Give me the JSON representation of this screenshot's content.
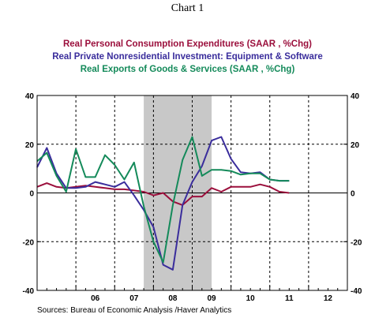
{
  "title": "Chart 1",
  "source": "Sources:  Bureau of Economic Analysis /Haver Analytics",
  "chart_data": {
    "type": "line",
    "x_unit": "year (decimal)",
    "xlim": [
      2005.0,
      2013.0
    ],
    "ylim": [
      -40,
      40
    ],
    "y_ticks": [
      40,
      20,
      0,
      -20,
      -40
    ],
    "y_tick_labels": [
      "40",
      "20",
      "0",
      "-20",
      "-40"
    ],
    "x_tick_labels": [
      {
        "label": "06",
        "x": 2006.5
      },
      {
        "label": "07",
        "x": 2007.5
      },
      {
        "label": "08",
        "x": 2008.5
      },
      {
        "label": "09",
        "x": 2009.5
      },
      {
        "label": "10",
        "x": 2010.5
      },
      {
        "label": "11",
        "x": 2011.5
      },
      {
        "label": "12",
        "x": 2012.5
      }
    ],
    "recession_shading": {
      "start": 2007.75,
      "end": 2009.5
    },
    "grid": {
      "vertical_dashed_at": [
        2006,
        2007,
        2008,
        2009,
        2010,
        2011,
        2012
      ],
      "horizontal_dashed_at": [
        20,
        -20
      ]
    },
    "series": [
      {
        "name": "Real Personal Consumption Expenditures (SAAR , %Chg)",
        "color": "#9b0f3c",
        "x": [
          2005.0,
          2005.25,
          2005.5,
          2005.75,
          2006.0,
          2006.25,
          2006.5,
          2006.75,
          2007.0,
          2007.25,
          2007.5,
          2007.75,
          2008.0,
          2008.25,
          2008.5,
          2008.75,
          2009.0,
          2009.25,
          2009.5,
          2009.75,
          2010.0,
          2010.25,
          2010.5,
          2010.75,
          2011.0,
          2011.25,
          2011.5
        ],
        "y": [
          2.5,
          4.0,
          2.5,
          2.0,
          2.5,
          3.0,
          2.5,
          2.0,
          1.5,
          1.5,
          1.0,
          0.5,
          -1.0,
          0.0,
          -3.5,
          -5.0,
          -1.5,
          -1.5,
          2.0,
          0.5,
          2.5,
          2.5,
          2.5,
          3.5,
          2.5,
          0.5,
          0.0
        ]
      },
      {
        "name": "Real Private Nonresidential Investment: Equipment & Software",
        "color": "#3a2d9c",
        "x": [
          2005.0,
          2005.25,
          2005.5,
          2005.75,
          2006.0,
          2006.25,
          2006.5,
          2006.75,
          2007.0,
          2007.25,
          2007.5,
          2007.75,
          2008.0,
          2008.25,
          2008.5,
          2008.75,
          2009.0,
          2009.25,
          2009.5,
          2009.75,
          2010.0,
          2010.25,
          2010.5,
          2010.75,
          2011.0,
          2011.25,
          2011.5
        ],
        "y": [
          10.5,
          18.5,
          8.0,
          2.0,
          2.0,
          2.5,
          4.5,
          3.5,
          2.5,
          4.5,
          -1.0,
          -7.0,
          -14.0,
          -29.5,
          -31.5,
          -5.0,
          4.5,
          11.0,
          21.5,
          23.0,
          14.0,
          8.5,
          8.0,
          8.5,
          5.5,
          5.0,
          5.0
        ]
      },
      {
        "name": "Real Exports of Goods & Services (SAAR , %Chg)",
        "color": "#148a5a",
        "x": [
          2005.0,
          2005.25,
          2005.5,
          2005.75,
          2006.0,
          2006.25,
          2006.5,
          2006.75,
          2007.0,
          2007.25,
          2007.5,
          2007.75,
          2008.0,
          2008.25,
          2008.5,
          2008.75,
          2009.0,
          2009.25,
          2009.5,
          2009.75,
          2010.0,
          2010.25,
          2010.5,
          2010.75,
          2011.0,
          2011.25,
          2011.5
        ],
        "y": [
          13.0,
          16.5,
          7.0,
          0.5,
          18.0,
          6.5,
          6.5,
          15.5,
          11.5,
          5.5,
          12.5,
          -5.5,
          -20.0,
          -28.5,
          -5.0,
          13.5,
          23.0,
          7.0,
          9.5,
          9.5,
          9.0,
          7.5,
          8.0,
          8.0,
          5.5,
          5.0,
          5.0
        ]
      }
    ]
  }
}
